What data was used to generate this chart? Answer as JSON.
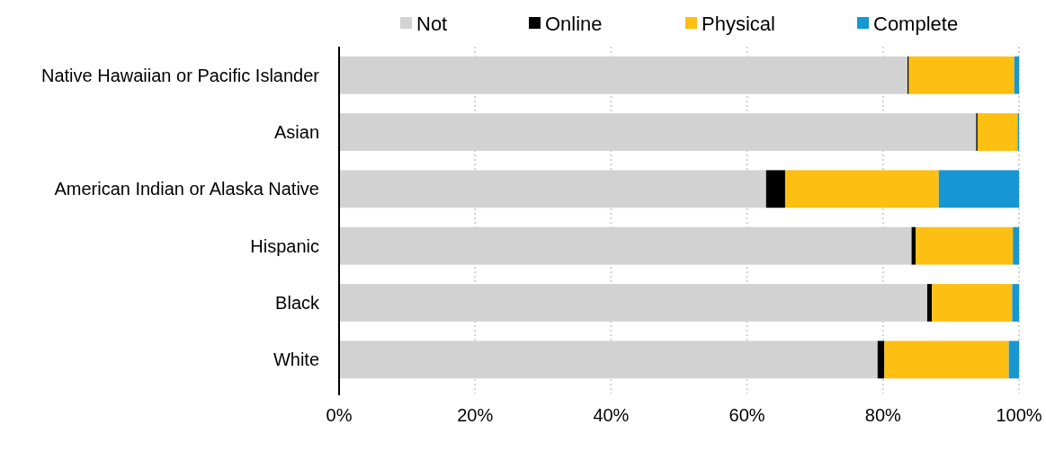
{
  "chart_data": {
    "type": "bar",
    "orientation": "horizontal",
    "stacked": true,
    "categories": [
      "Native Hawaiian or Pacific Islander",
      "Asian",
      "American Indian or Alaska Native",
      "Hispanic",
      "Black",
      "White"
    ],
    "series": [
      {
        "name": "Not",
        "color": "#d2d2d2",
        "values": [
          83.6,
          93.7,
          62.8,
          84.2,
          86.5,
          79.2
        ]
      },
      {
        "name": "Online",
        "color": "#000000",
        "values": [
          0.2,
          0.2,
          2.8,
          0.6,
          0.7,
          1.0
        ]
      },
      {
        "name": "Physical",
        "color": "#fdbf11",
        "values": [
          15.5,
          5.9,
          22.6,
          14.3,
          11.8,
          18.3
        ]
      },
      {
        "name": "Complete",
        "color": "#1696d2",
        "values": [
          0.7,
          0.2,
          11.8,
          0.9,
          1.0,
          1.5
        ]
      }
    ],
    "xlim": [
      0,
      100
    ],
    "xticks": [
      {
        "value": 0,
        "label": "0%"
      },
      {
        "value": 20,
        "label": "20%"
      },
      {
        "value": 40,
        "label": "40%"
      },
      {
        "value": 60,
        "label": "60%"
      },
      {
        "value": 80,
        "label": "80%"
      },
      {
        "value": 100,
        "label": "100%"
      }
    ],
    "grid": "x",
    "legend": "top"
  }
}
